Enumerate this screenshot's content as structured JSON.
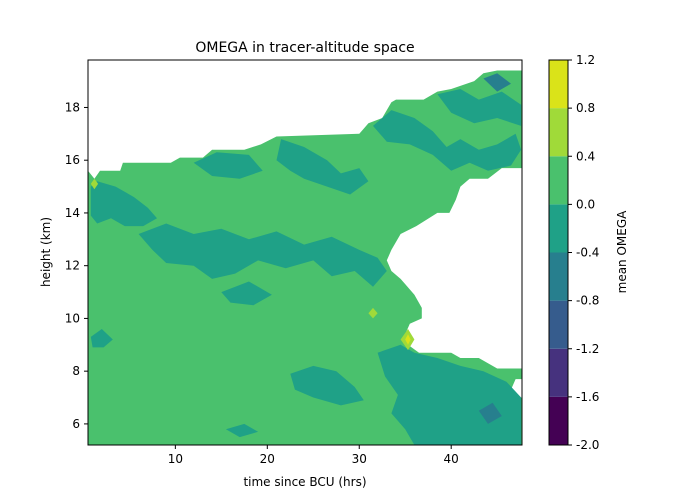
{
  "chart_data": {
    "type": "contourf",
    "title": "OMEGA in tracer-altitude space",
    "xlabel": "time since BCU (hrs)",
    "ylabel": "height (km)",
    "xlim": [
      0.5,
      47.7
    ],
    "ylim": [
      5.2,
      19.8
    ],
    "xticks": [
      "10",
      "20",
      "30",
      "40"
    ],
    "yticks": [
      "6",
      "8",
      "10",
      "12",
      "14",
      "16",
      "18"
    ],
    "grid": false,
    "colorbar": {
      "label": "mean OMEGA",
      "levels": [
        -2.0,
        -1.6,
        -1.2,
        -0.8,
        -0.4,
        0.0,
        0.4,
        0.8,
        1.2
      ],
      "tick_labels": [
        "-2.0",
        "-1.6",
        "-1.2",
        "-0.8",
        "-0.4",
        "0.0",
        "0.4",
        "0.8",
        "1.2"
      ],
      "colors": [
        "#440154",
        "#46327e",
        "#365c8d",
        "#277f8e",
        "#1fa187",
        "#4ac16d",
        "#a0da39",
        "#dae319"
      ]
    },
    "data_boundary": {
      "description_free": true,
      "top_edge": [
        [
          0.5,
          15.6
        ],
        [
          1.2,
          15.3
        ],
        [
          1.8,
          15.6
        ],
        [
          4.0,
          15.6
        ],
        [
          4.3,
          15.9
        ],
        [
          9.5,
          15.9
        ],
        [
          10.5,
          16.1
        ],
        [
          13.0,
          16.1
        ],
        [
          14.0,
          16.4
        ],
        [
          17.5,
          16.4
        ],
        [
          19.3,
          16.6
        ],
        [
          21.0,
          16.9
        ],
        [
          30.0,
          17.0
        ],
        [
          31.0,
          17.4
        ],
        [
          32.5,
          17.6
        ],
        [
          33.0,
          17.9
        ],
        [
          33.5,
          18.2
        ],
        [
          34.0,
          18.3
        ],
        [
          37.0,
          18.3
        ],
        [
          38.5,
          18.6
        ],
        [
          40.0,
          18.7
        ],
        [
          42.5,
          19.0
        ],
        [
          43.5,
          19.3
        ],
        [
          45.0,
          19.4
        ],
        [
          47.7,
          19.4
        ]
      ],
      "right_edge": [
        [
          47.7,
          19.4
        ],
        [
          47.7,
          15.7
        ],
        [
          45.5,
          15.7
        ],
        [
          44.0,
          15.3
        ],
        [
          42.0,
          15.3
        ],
        [
          41.0,
          15.0
        ],
        [
          40.5,
          14.5
        ],
        [
          39.8,
          14.0
        ],
        [
          38.5,
          14.0
        ],
        [
          36.2,
          13.5
        ],
        [
          34.5,
          13.2
        ],
        [
          33.5,
          12.6
        ],
        [
          33.0,
          12.2
        ],
        [
          33.5,
          11.8
        ],
        [
          34.5,
          11.5
        ],
        [
          35.0,
          11.3
        ],
        [
          36.0,
          10.9
        ],
        [
          36.8,
          10.4
        ],
        [
          36.8,
          10.0
        ],
        [
          35.5,
          9.8
        ],
        [
          35.0,
          9.4
        ],
        [
          35.3,
          9.0
        ],
        [
          36.5,
          8.7
        ],
        [
          40.0,
          8.7
        ],
        [
          41.0,
          8.5
        ],
        [
          43.0,
          8.5
        ],
        [
          45.0,
          8.1
        ],
        [
          47.7,
          8.1
        ],
        [
          47.7,
          7.7
        ],
        [
          47.0,
          7.7
        ],
        [
          46.5,
          7.3
        ],
        [
          46.5,
          7.0
        ],
        [
          47.7,
          7.0
        ],
        [
          47.7,
          5.2
        ]
      ]
    },
    "fill_regions": [
      {
        "level": "-0.4 to 0.0",
        "points": [
          [
            0.8,
            15.0
          ],
          [
            1.5,
            15.2
          ],
          [
            3.5,
            15.0
          ],
          [
            5.5,
            14.6
          ],
          [
            7.0,
            14.2
          ],
          [
            8.0,
            13.8
          ],
          [
            6.5,
            13.5
          ],
          [
            4.5,
            13.5
          ],
          [
            3.0,
            13.8
          ],
          [
            1.5,
            13.6
          ],
          [
            0.8,
            13.9
          ]
        ]
      },
      {
        "level": "-0.4 to 0.0",
        "points": [
          [
            6.0,
            13.2
          ],
          [
            9.0,
            13.6
          ],
          [
            12.0,
            13.2
          ],
          [
            15.0,
            13.4
          ],
          [
            18.0,
            13.0
          ],
          [
            21.0,
            13.3
          ],
          [
            24.0,
            12.8
          ],
          [
            27.0,
            13.1
          ],
          [
            30.0,
            12.6
          ],
          [
            32.0,
            12.3
          ],
          [
            33.0,
            11.8
          ],
          [
            31.5,
            11.2
          ],
          [
            29.5,
            11.8
          ],
          [
            27.0,
            11.6
          ],
          [
            25.0,
            12.2
          ],
          [
            22.0,
            11.9
          ],
          [
            19.0,
            12.2
          ],
          [
            16.5,
            11.7
          ],
          [
            14.0,
            11.5
          ],
          [
            12.0,
            12.0
          ],
          [
            9.0,
            12.1
          ],
          [
            7.5,
            12.6
          ]
        ]
      },
      {
        "level": "-0.4 to 0.0",
        "points": [
          [
            12.0,
            15.9
          ],
          [
            14.5,
            16.3
          ],
          [
            18.0,
            16.2
          ],
          [
            19.5,
            15.6
          ],
          [
            17.0,
            15.3
          ],
          [
            14.0,
            15.4
          ]
        ]
      },
      {
        "level": "-0.4 to 0.0",
        "points": [
          [
            21.5,
            16.8
          ],
          [
            24.0,
            16.5
          ],
          [
            26.5,
            16.0
          ],
          [
            28.0,
            15.5
          ],
          [
            30.0,
            15.7
          ],
          [
            31.0,
            15.2
          ],
          [
            29.0,
            14.7
          ],
          [
            26.5,
            15.0
          ],
          [
            24.0,
            15.3
          ],
          [
            22.5,
            15.6
          ],
          [
            21.0,
            16.0
          ]
        ]
      },
      {
        "level": "-0.4 to 0.0",
        "points": [
          [
            31.5,
            17.3
          ],
          [
            33.5,
            17.9
          ],
          [
            36.0,
            17.6
          ],
          [
            38.0,
            17.1
          ],
          [
            39.5,
            16.5
          ],
          [
            41.0,
            16.8
          ],
          [
            43.0,
            16.4
          ],
          [
            45.0,
            16.6
          ],
          [
            47.0,
            17.0
          ],
          [
            47.6,
            16.4
          ],
          [
            46.5,
            15.8
          ],
          [
            44.0,
            15.6
          ],
          [
            42.0,
            15.9
          ],
          [
            40.0,
            15.6
          ],
          [
            38.0,
            16.2
          ],
          [
            35.5,
            16.6
          ],
          [
            33.0,
            16.7
          ]
        ]
      },
      {
        "level": "-0.4 to 0.0",
        "points": [
          [
            38.5,
            18.5
          ],
          [
            41.0,
            18.7
          ],
          [
            43.0,
            18.3
          ],
          [
            45.5,
            18.6
          ],
          [
            47.6,
            18.1
          ],
          [
            47.6,
            17.3
          ],
          [
            45.0,
            17.6
          ],
          [
            42.5,
            17.4
          ],
          [
            40.0,
            17.8
          ]
        ]
      },
      {
        "level": "-0.4 to 0.0",
        "points": [
          [
            15.0,
            11.0
          ],
          [
            18.0,
            11.4
          ],
          [
            20.5,
            10.9
          ],
          [
            18.5,
            10.5
          ],
          [
            16.0,
            10.6
          ]
        ]
      },
      {
        "level": "-0.4 to 0.0",
        "points": [
          [
            22.5,
            7.9
          ],
          [
            25.0,
            8.2
          ],
          [
            27.5,
            8.0
          ],
          [
            29.5,
            7.4
          ],
          [
            30.5,
            6.9
          ],
          [
            28.0,
            6.7
          ],
          [
            25.0,
            7.0
          ],
          [
            23.0,
            7.3
          ]
        ]
      },
      {
        "level": "-0.4 to 0.0",
        "points": [
          [
            32.0,
            8.7
          ],
          [
            34.5,
            9.0
          ],
          [
            36.0,
            8.7
          ],
          [
            38.5,
            8.5
          ],
          [
            41.0,
            8.2
          ],
          [
            43.5,
            8.0
          ],
          [
            46.0,
            7.6
          ],
          [
            47.6,
            7.0
          ],
          [
            47.6,
            5.2
          ],
          [
            36.0,
            5.2
          ],
          [
            35.0,
            5.8
          ],
          [
            33.5,
            6.4
          ],
          [
            34.2,
            7.1
          ],
          [
            32.8,
            7.8
          ]
        ]
      },
      {
        "level": "-0.4 to 0.0",
        "points": [
          [
            0.8,
            9.3
          ],
          [
            2.0,
            9.6
          ],
          [
            3.2,
            9.2
          ],
          [
            2.2,
            8.9
          ],
          [
            1.0,
            8.9
          ]
        ]
      },
      {
        "level": "-0.4 to 0.0",
        "points": [
          [
            15.5,
            5.8
          ],
          [
            17.5,
            6.0
          ],
          [
            19.0,
            5.7
          ],
          [
            17.0,
            5.5
          ]
        ]
      },
      {
        "level": "-0.8 to -0.4",
        "points": [
          [
            43.5,
            19.1
          ],
          [
            45.0,
            19.3
          ],
          [
            46.5,
            18.9
          ],
          [
            45.0,
            18.6
          ]
        ]
      },
      {
        "level": "-0.8 to -0.4",
        "points": [
          [
            43.0,
            6.5
          ],
          [
            44.5,
            6.8
          ],
          [
            45.5,
            6.3
          ],
          [
            44.0,
            6.0
          ]
        ]
      },
      {
        "level": "0.4 to 0.8",
        "points": [
          [
            0.8,
            15.1
          ],
          [
            1.2,
            15.3
          ],
          [
            1.6,
            15.1
          ],
          [
            1.2,
            14.9
          ]
        ]
      },
      {
        "level": "0.4 to 0.8",
        "points": [
          [
            31.0,
            10.2
          ],
          [
            31.5,
            10.4
          ],
          [
            32.0,
            10.2
          ],
          [
            31.5,
            10.0
          ]
        ]
      },
      {
        "level": "0.4 to 0.8",
        "points": [
          [
            34.5,
            9.2
          ],
          [
            35.3,
            9.6
          ],
          [
            36.0,
            9.2
          ],
          [
            35.3,
            8.8
          ]
        ]
      },
      {
        "level": "0.8 to 1.2",
        "points": [
          [
            35.0,
            9.2
          ],
          [
            35.3,
            9.4
          ],
          [
            35.6,
            9.2
          ],
          [
            35.3,
            9.0
          ]
        ]
      }
    ]
  }
}
